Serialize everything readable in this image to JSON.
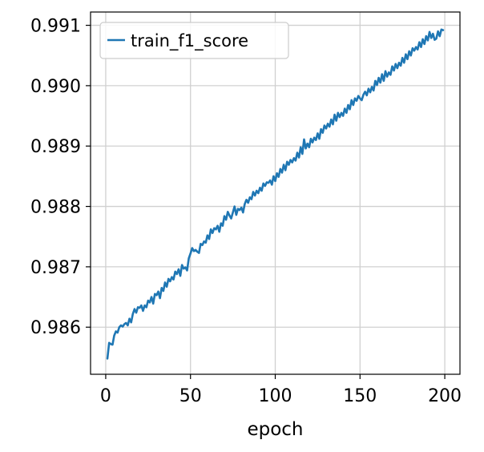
{
  "chart_data": {
    "type": "line",
    "title": "",
    "xlabel": "epoch",
    "ylabel": "",
    "xlim": [
      -8.95,
      208.95
    ],
    "ylim": [
      0.98522,
      0.99122
    ],
    "x_ticks": [
      0,
      50,
      100,
      150,
      200
    ],
    "x_tick_labels": [
      "0",
      "50",
      "100",
      "150",
      "200"
    ],
    "y_ticks": [
      0.986,
      0.987,
      0.988,
      0.989,
      0.99,
      0.991
    ],
    "y_tick_labels": [
      "0.986",
      "0.987",
      "0.988",
      "0.989",
      "0.990",
      "0.991"
    ],
    "grid": true,
    "legend_position": "top-left",
    "series": [
      {
        "name": "train_f1_score",
        "color": "#1f77b4",
        "x_start": 1,
        "x_step": 1,
        "y": [
          0.98548,
          0.98574,
          0.98572,
          0.98571,
          0.98586,
          0.98593,
          0.98591,
          0.986,
          0.98603,
          0.98601,
          0.98605,
          0.98607,
          0.98603,
          0.98614,
          0.98608,
          0.98622,
          0.9863,
          0.98624,
          0.98633,
          0.98632,
          0.98636,
          0.98627,
          0.98636,
          0.98633,
          0.98644,
          0.98641,
          0.9865,
          0.98639,
          0.98655,
          0.98653,
          0.98659,
          0.98648,
          0.98665,
          0.9866,
          0.98674,
          0.98667,
          0.9868,
          0.98676,
          0.98683,
          0.98679,
          0.98692,
          0.98688,
          0.98696,
          0.98685,
          0.98703,
          0.98697,
          0.98699,
          0.98694,
          0.98714,
          0.98722,
          0.98731,
          0.98726,
          0.98728,
          0.98725,
          0.98723,
          0.98738,
          0.98736,
          0.98742,
          0.9874,
          0.98752,
          0.98746,
          0.98762,
          0.98756,
          0.98764,
          0.98762,
          0.98768,
          0.98758,
          0.98772,
          0.98768,
          0.98784,
          0.98778,
          0.98791,
          0.98785,
          0.9878,
          0.9879,
          0.988,
          0.98786,
          0.98796,
          0.98794,
          0.98798,
          0.9879,
          0.98804,
          0.98811,
          0.98806,
          0.98815,
          0.98812,
          0.98824,
          0.98818,
          0.98826,
          0.98822,
          0.98831,
          0.98826,
          0.98838,
          0.98834,
          0.9884,
          0.98839,
          0.98843,
          0.98836,
          0.9885,
          0.98842,
          0.98855,
          0.98849,
          0.98862,
          0.98856,
          0.98869,
          0.9886,
          0.98874,
          0.98869,
          0.98877,
          0.98873,
          0.9888,
          0.98876,
          0.98889,
          0.98881,
          0.98898,
          0.98887,
          0.98911,
          0.98896,
          0.98904,
          0.98898,
          0.98912,
          0.98906,
          0.98914,
          0.9891,
          0.98921,
          0.98912,
          0.98928,
          0.98922,
          0.98934,
          0.98929,
          0.98937,
          0.98932,
          0.98944,
          0.98936,
          0.98952,
          0.98942,
          0.98955,
          0.98948,
          0.98955,
          0.9895,
          0.98962,
          0.98955,
          0.98968,
          0.98961,
          0.98976,
          0.98968,
          0.98979,
          0.98975,
          0.98983,
          0.98979,
          0.98976,
          0.98985,
          0.9899,
          0.98984,
          0.98995,
          0.98989,
          0.98998,
          0.98992,
          0.99008,
          0.99001,
          0.99013,
          0.99005,
          0.99019,
          0.99008,
          0.99024,
          0.99015,
          0.99022,
          0.99018,
          0.99032,
          0.99025,
          0.99036,
          0.99029,
          0.99038,
          0.99033,
          0.99046,
          0.99038,
          0.99052,
          0.99044,
          0.99057,
          0.9905,
          0.99062,
          0.99058,
          0.99064,
          0.9906,
          0.99072,
          0.99064,
          0.99077,
          0.99069,
          0.99082,
          0.99075,
          0.99089,
          0.99079,
          0.99086,
          0.99076,
          0.99078,
          0.9909,
          0.99082,
          0.99093,
          0.99092
        ]
      }
    ]
  }
}
